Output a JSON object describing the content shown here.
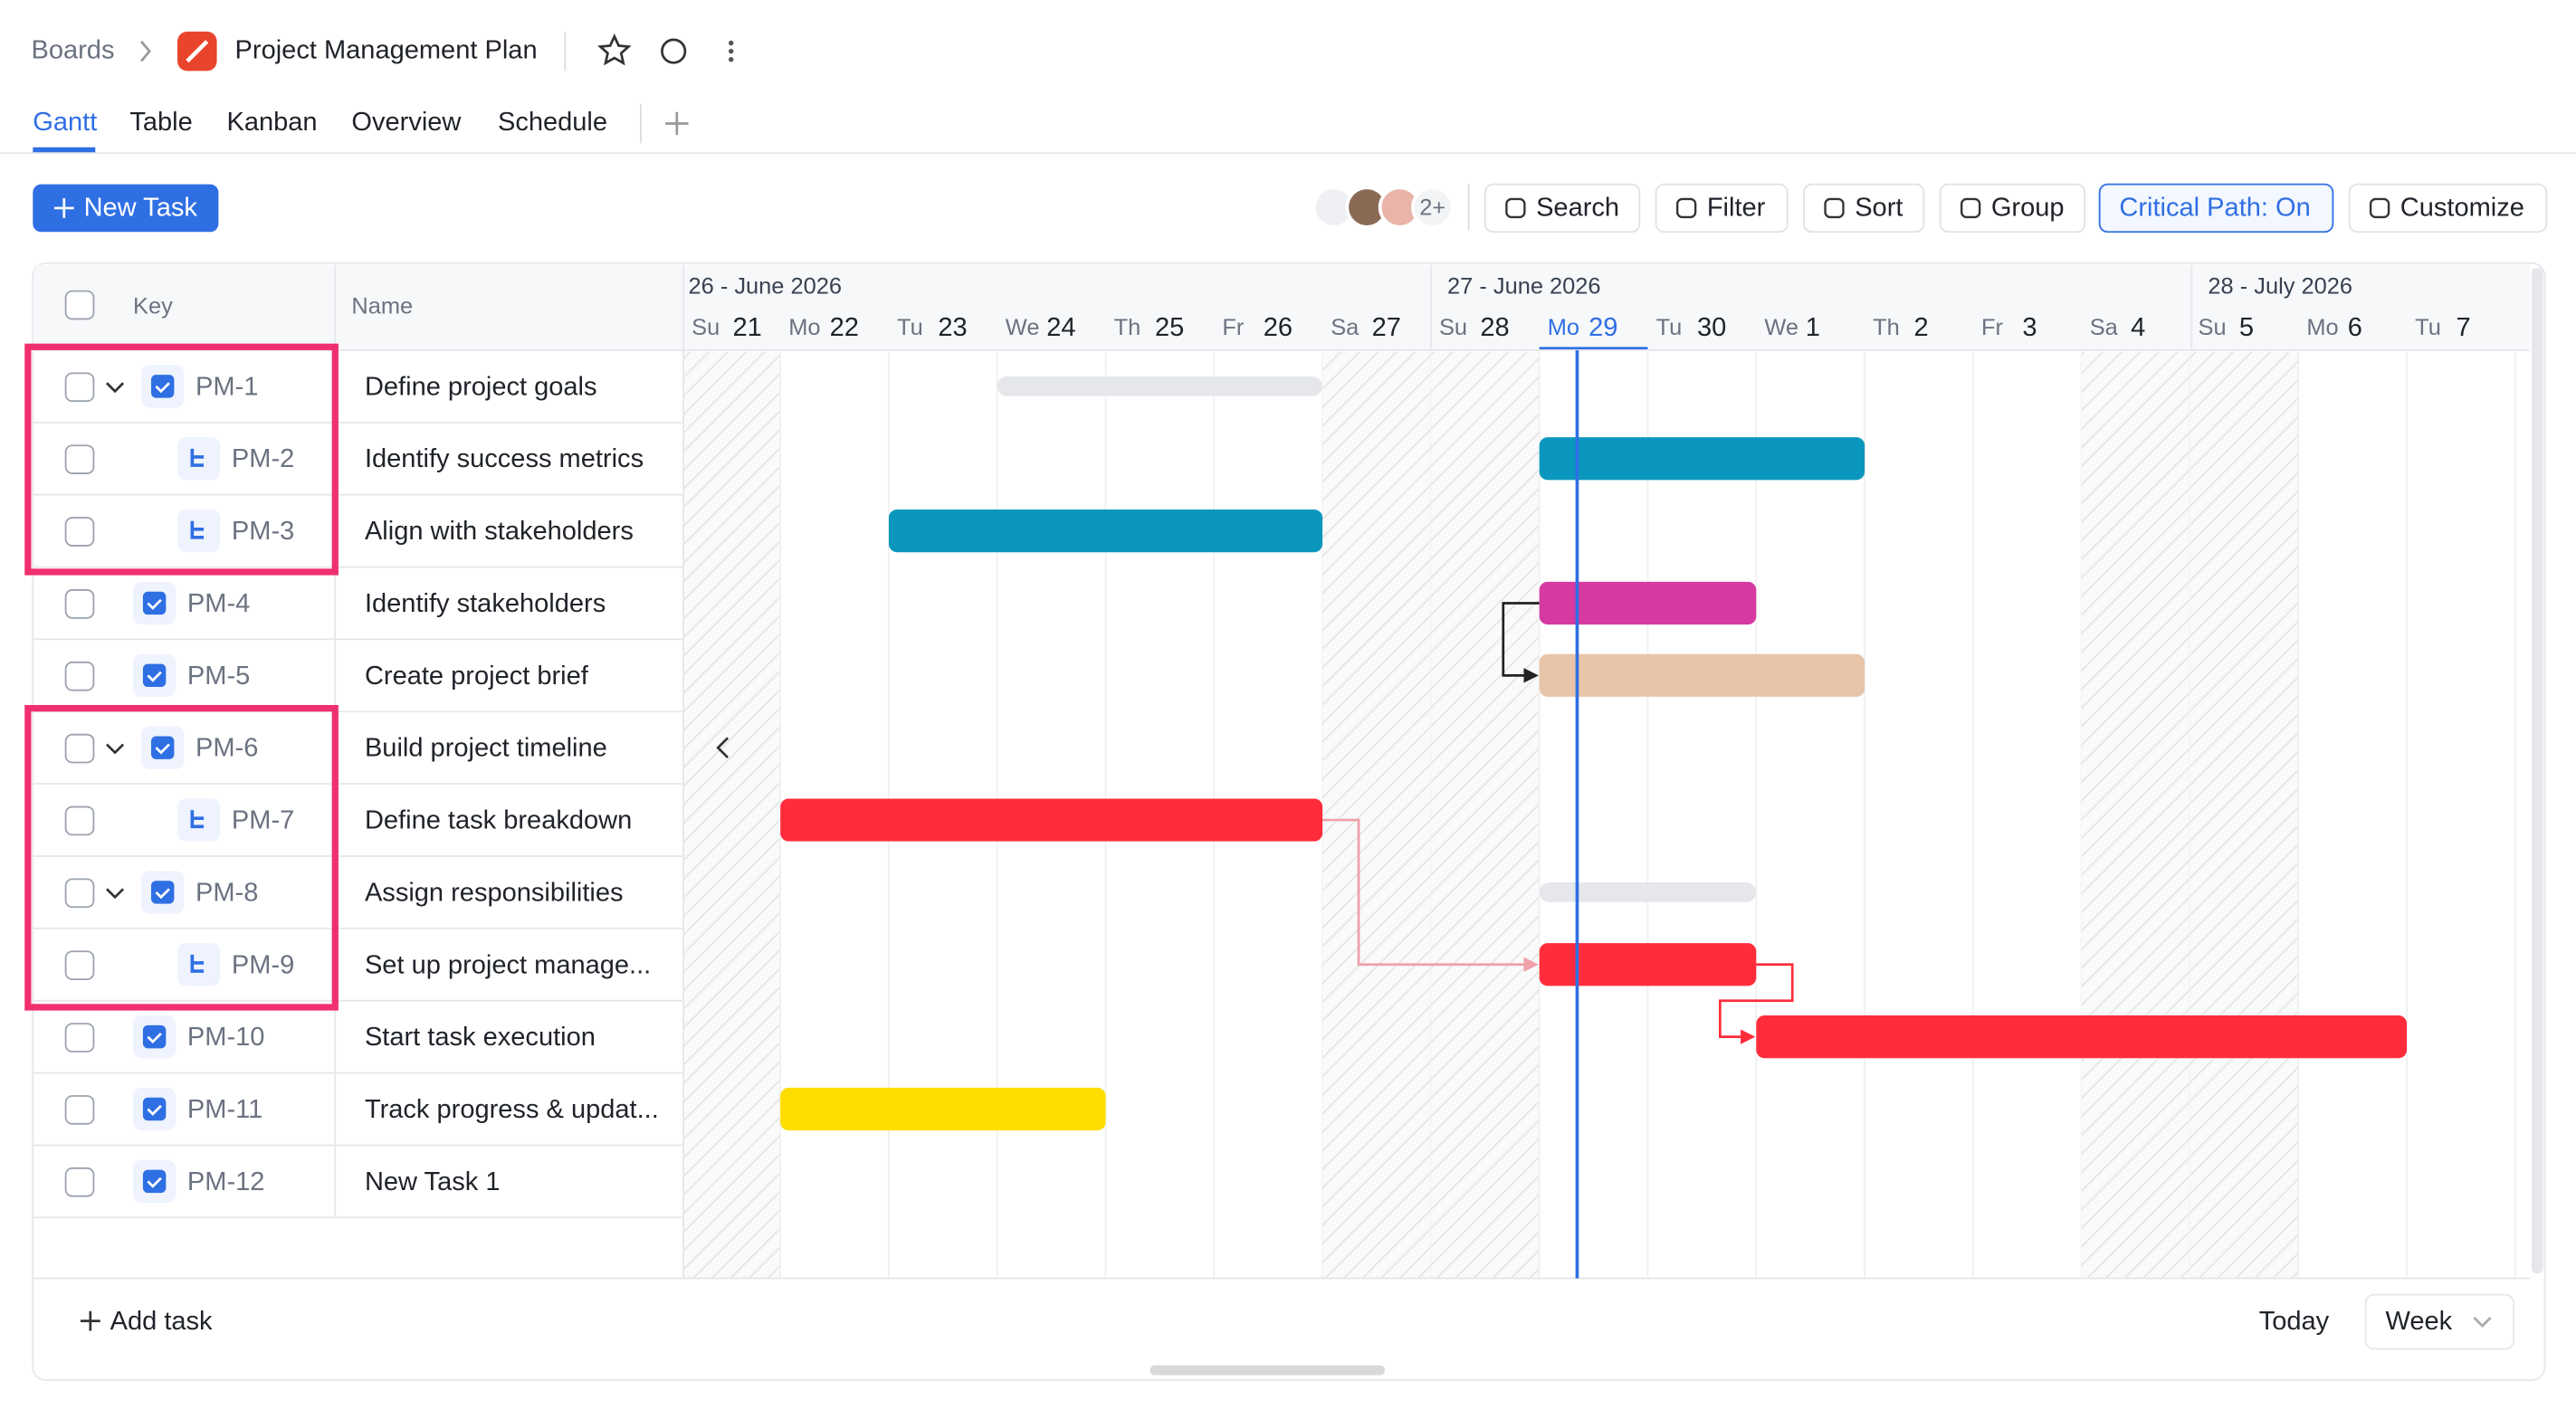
{
  "breadcrumb": {
    "root": "Boards",
    "title": "Project Management Plan"
  },
  "tabs": [
    "Gantt",
    "Table",
    "Kanban",
    "Overview",
    "Schedule"
  ],
  "toolbar": {
    "new_task": "New Task",
    "avatars_more": "2+",
    "buttons": [
      "Search",
      "Filter",
      "Sort",
      "Group",
      "Critical Path: On",
      "Customize"
    ]
  },
  "grid": {
    "columns": [
      "Key",
      "Name"
    ],
    "weeks": [
      "26 - June 2026",
      "27 - June 2026",
      "28 - July 2026"
    ],
    "days": [
      {
        "dow": "Su",
        "day": 21
      },
      {
        "dow": "Mo",
        "day": 22
      },
      {
        "dow": "Tu",
        "day": 23
      },
      {
        "dow": "We",
        "day": 24
      },
      {
        "dow": "Th",
        "day": 25
      },
      {
        "dow": "Fr",
        "day": 26
      },
      {
        "dow": "Sa",
        "day": 27
      },
      {
        "dow": "Su",
        "day": 28
      },
      {
        "dow": "Mo",
        "day": 29
      },
      {
        "dow": "Tu",
        "day": 30
      },
      {
        "dow": "We",
        "day": 1
      },
      {
        "dow": "Th",
        "day": 2
      },
      {
        "dow": "Fr",
        "day": 3
      },
      {
        "dow": "Sa",
        "day": 4
      },
      {
        "dow": "Su",
        "day": 5
      },
      {
        "dow": "Mo",
        "day": 6
      },
      {
        "dow": "Tu",
        "day": 7
      }
    ],
    "rows": [
      {
        "key": "PM-1",
        "name": "Define project goals"
      },
      {
        "key": "PM-2",
        "name": "Identify success metrics"
      },
      {
        "key": "PM-3",
        "name": "Align with stakeholders"
      },
      {
        "key": "PM-4",
        "name": "Identify stakeholders"
      },
      {
        "key": "PM-5",
        "name": "Create project brief"
      },
      {
        "key": "PM-6",
        "name": "Build project timeline"
      },
      {
        "key": "PM-7",
        "name": "Define task breakdown"
      },
      {
        "key": "PM-8",
        "name": "Assign responsibilities"
      },
      {
        "key": "PM-9",
        "name": "Set up project manage..."
      },
      {
        "key": "PM-10",
        "name": "Start task execution"
      },
      {
        "key": "PM-11",
        "name": "Track progress & updat..."
      },
      {
        "key": "PM-12",
        "name": "New Task 1"
      }
    ]
  },
  "footer": {
    "add_task": "Add task",
    "today": "Today",
    "view": "Week"
  }
}
